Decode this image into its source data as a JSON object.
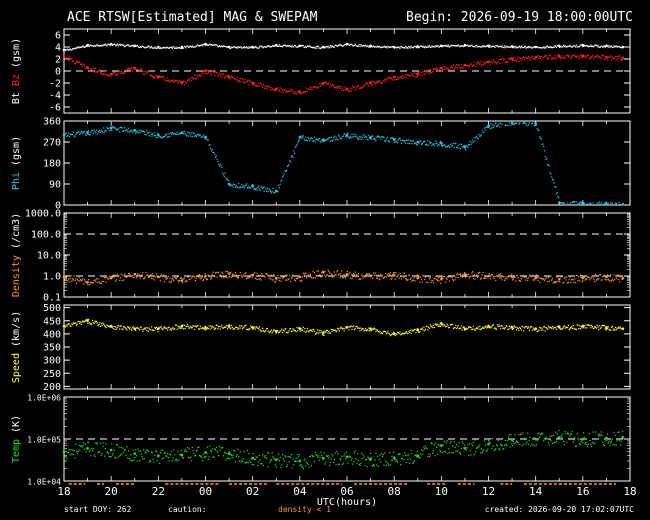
{
  "header": {
    "title": "ACE RTSW[Estimated] MAG & SWEPAM",
    "begin": "Begin: 2026-09-19 18:00:00UTC"
  },
  "footer": {
    "start_doy": "start DOY: 262",
    "caution_label": "caution:",
    "density_note": "density < 1",
    "created": "created: 2026-09-20 17:02:07UTC"
  },
  "colors": {
    "background": "#000000",
    "frame": "#ffffff",
    "bt": "#ffffff",
    "bz": "#ff2020",
    "phi": "#22c8e6",
    "density": "#ff9a1e",
    "speed": "#ffff30",
    "temp": "#20e020",
    "caution": "#ff9a1e"
  },
  "chart_data": {
    "type": "scatter",
    "x_axis": {
      "label": "UTC(hours)",
      "range_hours": [
        18,
        42
      ],
      "tick_labels": [
        "18",
        "20",
        "22",
        "00",
        "02",
        "04",
        "06",
        "08",
        "10",
        "12",
        "14",
        "16",
        "18"
      ]
    },
    "panels": [
      {
        "id": "mag",
        "ylabel_parts": [
          {
            "text": "Bt",
            "color": "#ffffff"
          },
          {
            "text": " Bz",
            "color": "#ff2020"
          },
          {
            "text": " (gsm)",
            "color": "#ffffff"
          }
        ],
        "scale": "linear",
        "ylim": [
          -7,
          7
        ],
        "ticks": [
          {
            "v": 6,
            "label": "6"
          },
          {
            "v": 4,
            "label": "4"
          },
          {
            "v": 2,
            "label": "2"
          },
          {
            "v": 0,
            "label": "0"
          },
          {
            "v": -2,
            "label": "-2"
          },
          {
            "v": -4,
            "label": "-4"
          },
          {
            "v": -6,
            "label": "-6"
          }
        ],
        "dashed": [
          0
        ],
        "series": [
          {
            "key": "bt",
            "color": "#ffffff",
            "x": [
              18.0,
              19.0,
              20.0,
              21.0,
              22.0,
              23.0,
              24.0,
              25.0,
              26.0,
              27.0,
              28.0,
              29.0,
              30.0,
              31.0,
              32.0,
              33.0,
              34.0,
              35.0,
              36.0,
              37.0,
              38.0,
              39.0,
              40.0,
              41.0,
              41.7
            ],
            "y": [
              3.5,
              4.3,
              4.5,
              4.2,
              4.0,
              4.0,
              4.5,
              4.0,
              4.0,
              4.3,
              4.2,
              4.0,
              4.5,
              4.2,
              4.0,
              4.1,
              4.2,
              4.3,
              4.2,
              4.1,
              4.0,
              4.2,
              4.3,
              4.2,
              4.0
            ]
          },
          {
            "key": "bz",
            "color": "#ff2020",
            "x": [
              18.0,
              19.0,
              20.0,
              21.0,
              22.0,
              23.0,
              24.0,
              25.0,
              26.0,
              27.0,
              28.0,
              29.0,
              30.0,
              31.0,
              32.0,
              33.0,
              34.0,
              35.0,
              36.0,
              37.0,
              38.0,
              39.0,
              40.0,
              41.0,
              41.7
            ],
            "y": [
              2.5,
              0.5,
              -0.5,
              0.5,
              -1.0,
              -2.0,
              0.0,
              -1.0,
              -2.0,
              -3.0,
              -3.5,
              -2.0,
              -3.0,
              -2.0,
              -1.0,
              -0.5,
              0.5,
              1.0,
              1.5,
              2.0,
              2.3,
              2.5,
              2.5,
              2.3,
              2.2
            ]
          }
        ]
      },
      {
        "id": "phi",
        "ylabel_parts": [
          {
            "text": "Phi",
            "color": "#22c8e6"
          },
          {
            "text": " (gsm)",
            "color": "#ffffff"
          }
        ],
        "scale": "linear",
        "ylim": [
          0,
          360
        ],
        "ticks": [
          {
            "v": 360,
            "label": "360"
          },
          {
            "v": 270,
            "label": "270"
          },
          {
            "v": 180,
            "label": "180"
          },
          {
            "v": 90,
            "label": "90"
          },
          {
            "v": 0,
            "label": "0"
          }
        ],
        "dashed": [],
        "series": [
          {
            "key": "phi",
            "color": "#22c8e6",
            "x": [
              18.0,
              19.0,
              20.0,
              21.0,
              22.0,
              23.0,
              24.0,
              25.0,
              26.0,
              27.0,
              28.0,
              29.0,
              30.0,
              31.0,
              32.0,
              33.0,
              34.0,
              35.0,
              36.0,
              37.0,
              38.0,
              39.0,
              40.0,
              41.0,
              41.7
            ],
            "y": [
              300,
              310,
              330,
              320,
              300,
              310,
              290,
              90,
              80,
              60,
              290,
              280,
              300,
              290,
              280,
              270,
              265,
              250,
              340,
              355,
              350,
              10,
              5,
              5,
              3
            ]
          }
        ]
      },
      {
        "id": "density",
        "ylabel_parts": [
          {
            "text": "Density",
            "color": "#ff9a1e"
          },
          {
            "text": " (/cm3)",
            "color": "#ffffff"
          }
        ],
        "scale": "log",
        "ylim": [
          0.1,
          1000
        ],
        "ticks": [
          {
            "v": 1000,
            "label": "1000.0"
          },
          {
            "v": 100,
            "label": "100.0"
          },
          {
            "v": 10,
            "label": "10.0"
          },
          {
            "v": 1,
            "label": "1.0"
          },
          {
            "v": 0.1,
            "label": "0.1"
          }
        ],
        "dashed": [
          1,
          100
        ],
        "series": [
          {
            "key": "density",
            "color": "#ff9a1e",
            "x": [
              18.0,
              19.0,
              20.0,
              21.0,
              22.0,
              23.0,
              24.0,
              25.0,
              26.0,
              27.0,
              28.0,
              29.0,
              30.0,
              31.0,
              32.0,
              33.0,
              34.0,
              35.0,
              36.0,
              37.0,
              38.0,
              39.0,
              40.0,
              41.0,
              41.7
            ],
            "y": [
              0.9,
              0.5,
              0.8,
              1.2,
              0.9,
              0.6,
              1.0,
              1.3,
              1.1,
              0.8,
              0.9,
              1.5,
              1.2,
              1.0,
              1.1,
              0.8,
              0.7,
              1.2,
              1.0,
              0.9,
              0.8,
              0.7,
              0.8,
              0.9,
              0.8
            ]
          }
        ]
      },
      {
        "id": "speed",
        "ylabel_parts": [
          {
            "text": "Speed",
            "color": "#ffff30"
          },
          {
            "text": " (km/s)",
            "color": "#ffffff"
          }
        ],
        "scale": "linear",
        "ylim": [
          190,
          510
        ],
        "ticks": [
          {
            "v": 500,
            "label": "500"
          },
          {
            "v": 450,
            "label": "450"
          },
          {
            "v": 400,
            "label": "400"
          },
          {
            "v": 350,
            "label": "350"
          },
          {
            "v": 300,
            "label": "300"
          },
          {
            "v": 250,
            "label": "250"
          },
          {
            "v": 200,
            "label": "200"
          }
        ],
        "dashed": [],
        "series": [
          {
            "key": "speed",
            "color": "#ffff30",
            "x": [
              18.0,
              19.0,
              20.0,
              21.0,
              22.0,
              23.0,
              24.0,
              25.0,
              26.0,
              27.0,
              28.0,
              29.0,
              30.0,
              31.0,
              32.0,
              33.0,
              34.0,
              35.0,
              36.0,
              37.0,
              38.0,
              39.0,
              40.0,
              41.0,
              41.7
            ],
            "y": [
              430,
              450,
              430,
              420,
              420,
              430,
              425,
              430,
              425,
              410,
              420,
              405,
              425,
              420,
              400,
              415,
              440,
              420,
              430,
              425,
              420,
              425,
              430,
              425,
              420
            ]
          }
        ]
      },
      {
        "id": "temp",
        "ylabel_parts": [
          {
            "text": "Temp",
            "color": "#20e020"
          },
          {
            "text": " (K)",
            "color": "#ffffff"
          }
        ],
        "scale": "log",
        "ylim": [
          10000,
          1000000
        ],
        "ticks": [
          {
            "v": 1000000,
            "label": "1.0E+06"
          },
          {
            "v": 100000,
            "label": "1.0E+05"
          },
          {
            "v": 10000,
            "label": "1.0E+04"
          }
        ],
        "dashed": [
          100000
        ],
        "series": [
          {
            "key": "temp",
            "color": "#20e020",
            "x": [
              18.0,
              19.0,
              20.0,
              21.0,
              22.0,
              23.0,
              24.0,
              25.0,
              26.0,
              27.0,
              28.0,
              29.0,
              30.0,
              31.0,
              32.0,
              33.0,
              34.0,
              35.0,
              36.0,
              37.0,
              38.0,
              39.0,
              40.0,
              41.0,
              41.7
            ],
            "y": [
              50000,
              60000,
              55000,
              45000,
              40000,
              42000,
              48000,
              45000,
              35000,
              32000,
              30000,
              35000,
              38000,
              33000,
              35000,
              40000,
              70000,
              60000,
              75000,
              95000,
              100000,
              110000,
              100000,
              105000,
              110000
            ]
          }
        ]
      }
    ],
    "caution_segments_hours": [
      [
        18.2,
        18.9
      ],
      [
        19.4,
        19.7
      ],
      [
        20.2,
        21.0
      ],
      [
        22.3,
        24.6
      ],
      [
        25.0,
        26.6
      ],
      [
        27.0,
        29.8
      ],
      [
        30.3,
        32.6
      ],
      [
        33.4,
        34.2
      ],
      [
        34.7,
        35.4
      ],
      [
        36.5,
        37.0
      ],
      [
        37.5,
        41.4
      ]
    ]
  }
}
